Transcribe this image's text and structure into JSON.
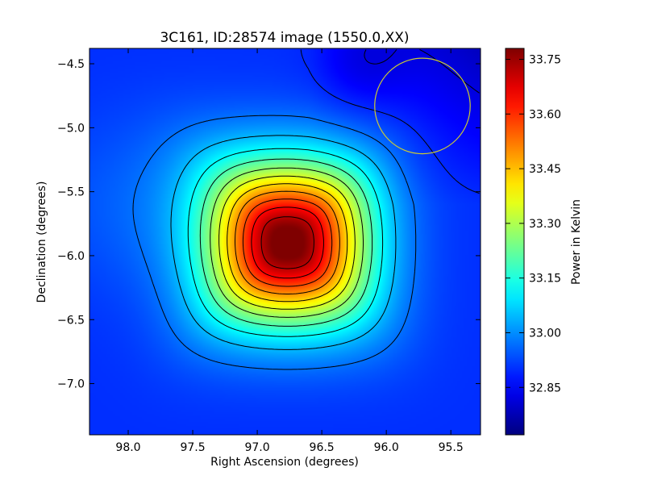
{
  "chart_data": {
    "type": "heatmap",
    "title": "3C161, ID:28574 image (1550.0,XX)",
    "xlabel": "Right Ascension (degrees)",
    "ylabel": "Declination (degrees)",
    "xlim": [
      98.3,
      95.27
    ],
    "ylim": [
      -7.4,
      -4.38
    ],
    "x_ticks": [
      98.0,
      97.5,
      97.0,
      96.5,
      96.0,
      95.5
    ],
    "y_ticks": [
      -4.5,
      -5.0,
      -5.5,
      -6.0,
      -6.5,
      -7.0
    ],
    "x_tick_labels": [
      "98.0",
      "97.5",
      "97.0",
      "96.5",
      "96.0",
      "95.5"
    ],
    "y_tick_labels": [
      "−4.5",
      "−5.0",
      "−5.5",
      "−6.0",
      "−6.5",
      "−7.0"
    ],
    "colorscale": "jet",
    "colorbar": {
      "label": "Power in Kelvin",
      "range": [
        32.72,
        33.78
      ],
      "ticks": [
        32.85,
        33.0,
        33.15,
        33.3,
        33.45,
        33.6,
        33.75
      ],
      "tick_labels": [
        "32.85",
        "33.00",
        "33.15",
        "33.30",
        "33.45",
        "33.60",
        "33.75"
      ]
    },
    "source_peak": {
      "ra": 96.76,
      "dec": -5.9,
      "value": 33.78
    },
    "background_level": 32.85,
    "beam_circle": {
      "ra": 95.72,
      "dec": -4.83,
      "radius_deg": 0.37,
      "color": "#cccc33"
    },
    "contour_color": "#000000",
    "grid": false,
    "legend": "none"
  }
}
